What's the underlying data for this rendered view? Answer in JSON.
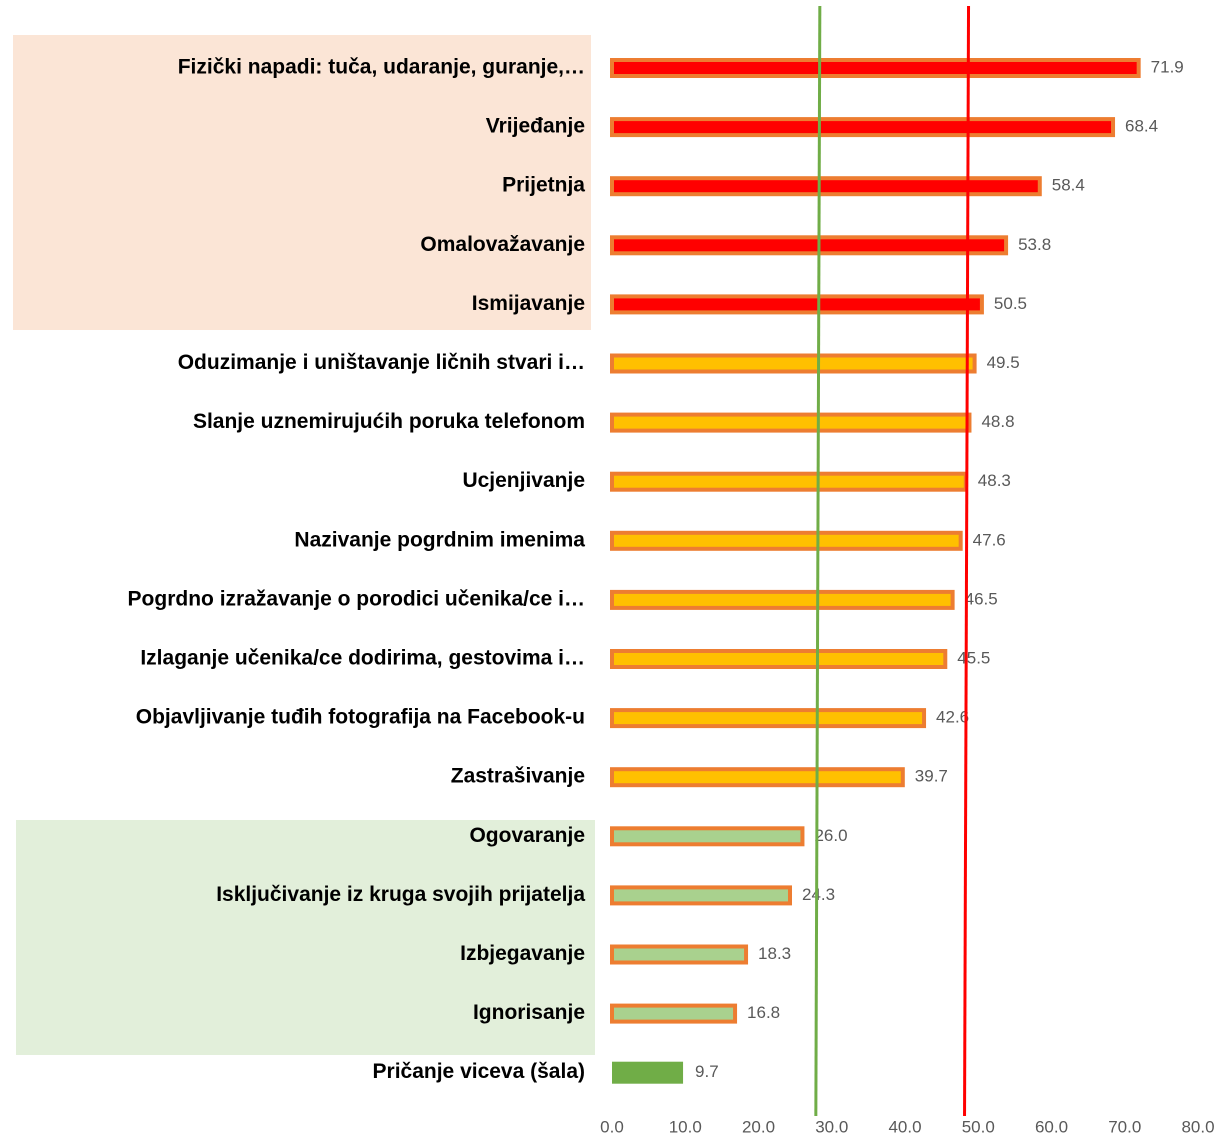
{
  "chart_data": {
    "type": "bar",
    "orientation": "horizontal",
    "categories": [
      "Fizički napadi: tuča, udaranje, guranje,…",
      "Vrijeđanje",
      "Prijetnja",
      "Omalovažavanje",
      "Ismijavanje",
      "Oduzimanje i uništavanje ličnih stvari i…",
      "Slanje uznemirujućih poruka telefonom",
      "Ucjenjivanje",
      "Nazivanje pogrdnim imenima",
      "Pogrdno izražavanje o porodici učenika/ce i…",
      "Izlaganje učenika/ce dodirima, gestovima i…",
      "Objavljivanje tuđih fotografija na Facebook-u",
      "Zastrašivanje",
      "Ogovaranje",
      "Isključivanje iz kruga svojih prijatelja",
      "Izbjegavanje",
      "Ignorisanje",
      "Pričanje viceva (šala)"
    ],
    "values": [
      71.9,
      68.4,
      58.4,
      53.8,
      50.5,
      49.5,
      48.8,
      48.3,
      47.6,
      46.5,
      45.5,
      42.6,
      39.7,
      26.0,
      24.3,
      18.3,
      16.8,
      9.7
    ],
    "value_labels": [
      "71.9",
      "68.4",
      "58.4",
      "53.8",
      "50.5",
      "49.5",
      "48.8",
      "48.3",
      "47.6",
      "46.5",
      "45.5",
      "42.6",
      "39.7",
      "26.0",
      "24.3",
      "18.3",
      "16.8",
      "9.7"
    ],
    "colors": [
      "#ff0000",
      "#ff0000",
      "#ff0000",
      "#ff0000",
      "#ff0000",
      "#ffc000",
      "#ffc000",
      "#ffc000",
      "#ffc000",
      "#ffc000",
      "#ffc000",
      "#ffc000",
      "#ffc000",
      "#a9d18e",
      "#a9d18e",
      "#a9d18e",
      "#a9d18e",
      "#70ad47"
    ],
    "edge_colors": [
      "#ed7d31",
      "#ed7d31",
      "#ed7d31",
      "#ed7d31",
      "#ed7d31",
      "#ed7d31",
      "#ed7d31",
      "#ed7d31",
      "#ed7d31",
      "#ed7d31",
      "#ed7d31",
      "#ed7d31",
      "#ed7d31",
      "#ed7d31",
      "#ed7d31",
      "#ed7d31",
      "#ed7d31",
      null
    ],
    "xlim": [
      0,
      80
    ],
    "xticks": [
      {
        "value": 0,
        "label": "0.0"
      },
      {
        "value": 10,
        "label": "10.0"
      },
      {
        "value": 20,
        "label": "20.0"
      },
      {
        "value": 30,
        "label": "30.0"
      },
      {
        "value": 40,
        "label": "40.0"
      },
      {
        "value": 50,
        "label": "50.0"
      },
      {
        "value": 60,
        "label": "60.0"
      },
      {
        "value": 70,
        "label": "70.0"
      },
      {
        "value": 80,
        "label": "80.0"
      }
    ],
    "reference_lines": [
      {
        "value": 28.1,
        "color": "#70ad47"
      },
      {
        "value": 48.4,
        "color": "#ff0000"
      }
    ],
    "grid": false
  }
}
